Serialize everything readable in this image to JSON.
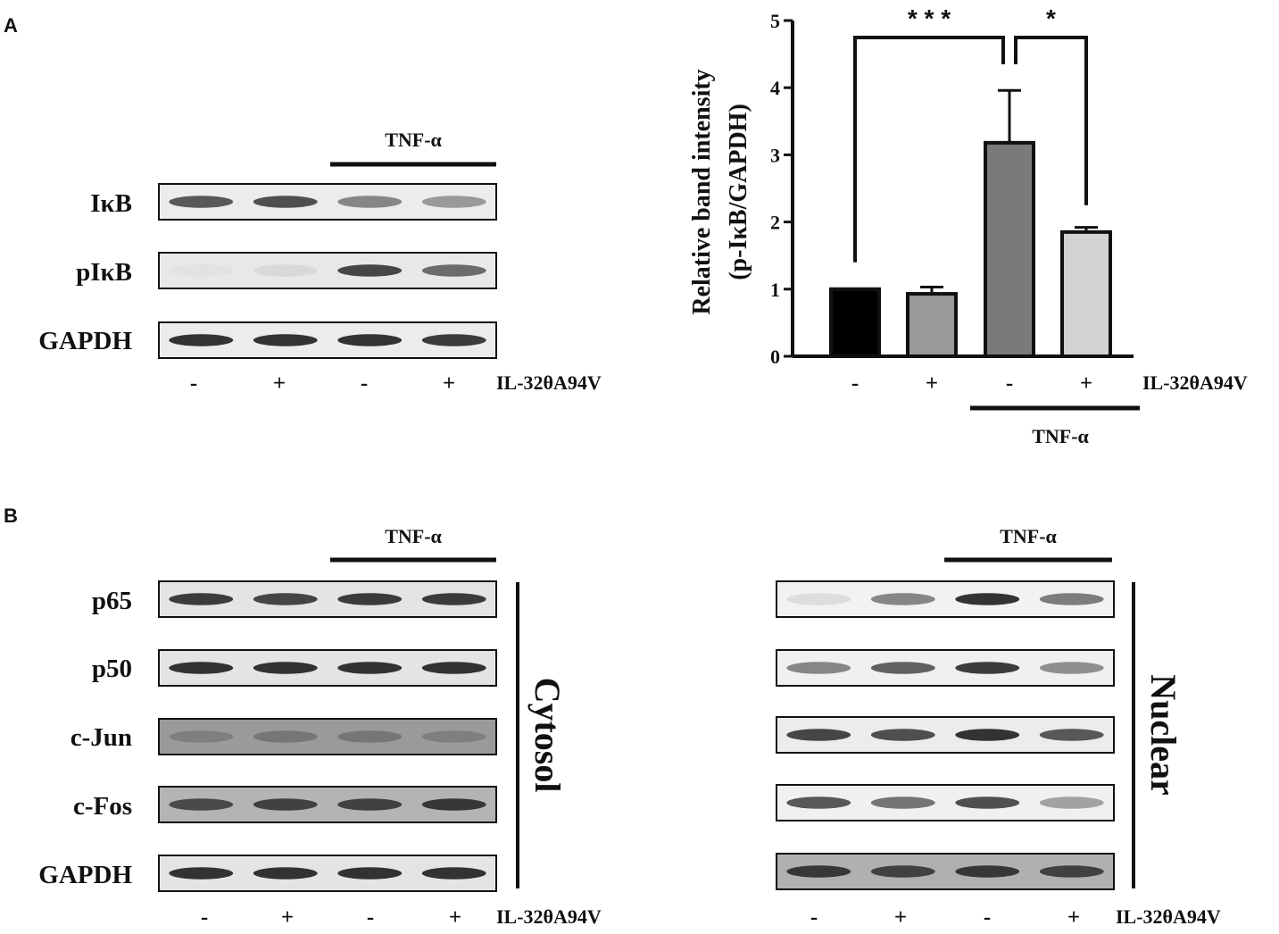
{
  "panels": {
    "a": "A",
    "b": "B"
  },
  "treatment_label": "IL-32θA94V",
  "stimulus_label": "TNF-α",
  "signs": [
    "-",
    "+",
    "-",
    "+"
  ],
  "panel_a": {
    "proteins": [
      "IκB",
      "pIκB",
      "GAPDH"
    ],
    "band_intensity": [
      [
        0.8,
        0.85,
        0.55,
        0.45
      ],
      [
        0.05,
        0.1,
        0.9,
        0.7
      ],
      [
        1.0,
        1.0,
        1.0,
        0.95
      ]
    ],
    "lane_background": [
      "#ececec",
      "#e8e8e8",
      "#ececec"
    ]
  },
  "panel_b": {
    "proteins": [
      "p65",
      "p50",
      "c-Jun",
      "c-Fos",
      "GAPDH"
    ],
    "cytosol_label": "Cytosol",
    "nuclear_label": "Nuclear",
    "cytosol_band_intensity": [
      [
        0.95,
        0.9,
        0.95,
        0.95
      ],
      [
        1.0,
        1.0,
        1.0,
        1.0
      ],
      [
        0.55,
        0.6,
        0.6,
        0.55
      ],
      [
        0.85,
        0.9,
        0.9,
        0.95
      ],
      [
        1.0,
        1.0,
        1.0,
        1.0
      ]
    ],
    "cytosol_background": [
      "#e4e4e4",
      "#e4e4e4",
      "#9a9a9a",
      "#b4b4b4",
      "#e4e4e4"
    ],
    "nuclear_band_intensity": [
      [
        0.08,
        0.55,
        1.0,
        0.6
      ],
      [
        0.55,
        0.75,
        0.95,
        0.5
      ],
      [
        0.9,
        0.85,
        1.0,
        0.8
      ],
      [
        0.8,
        0.65,
        0.85,
        0.4
      ],
      [
        0.95,
        0.9,
        0.95,
        0.9
      ]
    ],
    "nuclear_background": [
      "#f2f2f2",
      "#f0f0f0",
      "#ececec",
      "#f0f0f0",
      "#b0b0b0"
    ]
  },
  "chart_data": {
    "type": "bar",
    "ylabel_lines": [
      "Relative band intensity",
      "(p-IκB/GAPDH)"
    ],
    "ylim": [
      0,
      5
    ],
    "yticks": [
      0,
      1,
      2,
      3,
      4,
      5
    ],
    "categories": [
      "-",
      "+",
      "-",
      "+"
    ],
    "values": [
      1.0,
      0.93,
      3.18,
      1.85
    ],
    "errors": [
      0,
      0.1,
      0.78,
      0.07
    ],
    "bar_colors": [
      "#000000",
      "#999999",
      "#7a7a7a",
      "#d2d2d2"
    ],
    "treatment_label": "IL-32θA94V",
    "group_label": "TNF-α",
    "significance": [
      {
        "from": 0,
        "to": 2,
        "label": "* * *"
      },
      {
        "from": 2,
        "to": 3,
        "label": "*"
      }
    ]
  }
}
